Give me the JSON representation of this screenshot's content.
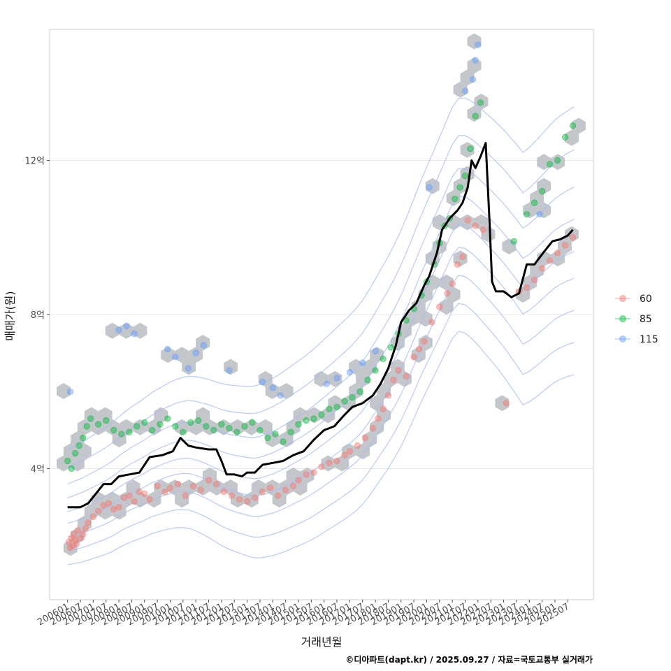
{
  "chart_data": {
    "type": "scatter",
    "xlabel": "거래년월",
    "ylabel": "매매가(원)",
    "caption": "©디아파트(dapt.kr) / 2025.09.27 / 자료=국토교통부 실거래가",
    "x_ticks": [
      "200601",
      "200607",
      "200701",
      "200707",
      "200801",
      "200807",
      "200901",
      "200907",
      "201001",
      "201007",
      "201101",
      "201107",
      "201201",
      "201207",
      "201301",
      "201307",
      "201401",
      "201407",
      "201501",
      "201507",
      "201601",
      "201607",
      "201701",
      "201707",
      "201801",
      "201807",
      "201901",
      "201907",
      "202001",
      "202007",
      "202101",
      "202107",
      "202201",
      "202207",
      "202301",
      "202307",
      "202401",
      "202407",
      "202501",
      "202507"
    ],
    "y_ticks": [
      {
        "value": 4,
        "label": "4억"
      },
      {
        "value": 8,
        "label": "8억"
      },
      {
        "value": 12,
        "label": "12억"
      }
    ],
    "xlim": [
      2005.3,
      2026.5
    ],
    "ylim": [
      0.6,
      15.4
    ],
    "legend": {
      "position": "right",
      "entries": [
        {
          "name": "60",
          "color": "#F8766D"
        },
        {
          "name": "85",
          "color": "#00BA38"
        },
        {
          "name": "115",
          "color": "#619CFF"
        }
      ]
    },
    "colors": {
      "panel_border": "#cccccc",
      "grid": "#e8e8e8",
      "hex": "#b8bcc2",
      "trend": "#000000",
      "contour": "#a8bdf0"
    },
    "trend_line": [
      [
        2006.0,
        3.0
      ],
      [
        2006.5,
        3.0
      ],
      [
        2006.8,
        3.1
      ],
      [
        2007.1,
        3.35
      ],
      [
        2007.4,
        3.6
      ],
      [
        2007.7,
        3.6
      ],
      [
        2008.0,
        3.8
      ],
      [
        2008.4,
        3.85
      ],
      [
        2008.8,
        3.9
      ],
      [
        2009.2,
        4.3
      ],
      [
        2009.7,
        4.35
      ],
      [
        2010.1,
        4.45
      ],
      [
        2010.4,
        4.8
      ],
      [
        2010.7,
        4.6
      ],
      [
        2011.0,
        4.55
      ],
      [
        2011.5,
        4.5
      ],
      [
        2011.8,
        4.5
      ],
      [
        2012.0,
        4.2
      ],
      [
        2012.2,
        3.85
      ],
      [
        2012.5,
        3.85
      ],
      [
        2012.8,
        3.8
      ],
      [
        2013.0,
        3.9
      ],
      [
        2013.3,
        3.9
      ],
      [
        2013.6,
        4.1
      ],
      [
        2014.0,
        4.15
      ],
      [
        2014.4,
        4.2
      ],
      [
        2014.8,
        4.35
      ],
      [
        2015.2,
        4.45
      ],
      [
        2015.6,
        4.75
      ],
      [
        2016.0,
        5.0
      ],
      [
        2016.4,
        5.1
      ],
      [
        2016.8,
        5.4
      ],
      [
        2017.1,
        5.6
      ],
      [
        2017.5,
        5.7
      ],
      [
        2017.9,
        5.9
      ],
      [
        2018.2,
        6.2
      ],
      [
        2018.5,
        6.6
      ],
      [
        2018.8,
        7.2
      ],
      [
        2019.0,
        7.8
      ],
      [
        2019.3,
        8.1
      ],
      [
        2019.6,
        8.3
      ],
      [
        2019.9,
        8.75
      ],
      [
        2020.1,
        9.0
      ],
      [
        2020.4,
        9.6
      ],
      [
        2020.6,
        10.2
      ],
      [
        2020.9,
        10.5
      ],
      [
        2021.2,
        10.7
      ],
      [
        2021.4,
        10.9
      ],
      [
        2021.6,
        11.3
      ],
      [
        2021.75,
        12.0
      ],
      [
        2021.9,
        11.8
      ],
      [
        2022.1,
        12.1
      ],
      [
        2022.3,
        12.45
      ],
      [
        2022.45,
        10.4
      ],
      [
        2022.55,
        8.85
      ],
      [
        2022.7,
        8.6
      ],
      [
        2023.0,
        8.6
      ],
      [
        2023.3,
        8.45
      ],
      [
        2023.6,
        8.55
      ],
      [
        2023.9,
        9.3
      ],
      [
        2024.2,
        9.3
      ],
      [
        2024.6,
        9.65
      ],
      [
        2024.9,
        9.9
      ],
      [
        2025.2,
        9.95
      ],
      [
        2025.5,
        10.05
      ],
      [
        2025.7,
        10.2
      ]
    ],
    "series": [
      {
        "name": "60",
        "points": [
          [
            2006.05,
            2.1
          ],
          [
            2006.1,
            1.95
          ],
          [
            2006.15,
            2.2
          ],
          [
            2006.2,
            2.0
          ],
          [
            2006.25,
            2.3
          ],
          [
            2006.3,
            2.15
          ],
          [
            2006.35,
            2.05
          ],
          [
            2006.4,
            2.4
          ],
          [
            2006.5,
            2.2
          ],
          [
            2006.6,
            2.3
          ],
          [
            2006.7,
            2.45
          ],
          [
            2006.8,
            2.6
          ],
          [
            2007.0,
            2.75
          ],
          [
            2007.2,
            2.9
          ],
          [
            2007.4,
            3.05
          ],
          [
            2007.6,
            3.1
          ],
          [
            2007.8,
            2.95
          ],
          [
            2008.0,
            3.0
          ],
          [
            2008.2,
            3.25
          ],
          [
            2008.4,
            3.3
          ],
          [
            2008.6,
            3.15
          ],
          [
            2008.8,
            3.4
          ],
          [
            2009.0,
            3.35
          ],
          [
            2009.2,
            3.2
          ],
          [
            2009.5,
            3.55
          ],
          [
            2009.8,
            3.4
          ],
          [
            2010.0,
            3.5
          ],
          [
            2010.3,
            3.6
          ],
          [
            2010.6,
            3.3
          ],
          [
            2010.9,
            3.55
          ],
          [
            2011.2,
            3.45
          ],
          [
            2011.5,
            3.7
          ],
          [
            2011.8,
            3.6
          ],
          [
            2012.1,
            3.4
          ],
          [
            2012.4,
            3.3
          ],
          [
            2012.7,
            3.2
          ],
          [
            2013.0,
            3.15
          ],
          [
            2013.3,
            3.25
          ],
          [
            2013.6,
            3.4
          ],
          [
            2013.9,
            3.5
          ],
          [
            2014.2,
            3.3
          ],
          [
            2014.5,
            3.45
          ],
          [
            2014.8,
            3.55
          ],
          [
            2015.0,
            3.7
          ],
          [
            2015.3,
            3.85
          ],
          [
            2015.6,
            3.9
          ],
          [
            2015.9,
            4.05
          ],
          [
            2016.2,
            4.15
          ],
          [
            2016.5,
            4.2
          ],
          [
            2016.8,
            4.35
          ],
          [
            2017.0,
            4.45
          ],
          [
            2017.3,
            4.6
          ],
          [
            2017.6,
            4.8
          ],
          [
            2017.9,
            5.05
          ],
          [
            2018.1,
            5.3
          ],
          [
            2018.3,
            5.55
          ],
          [
            2018.5,
            5.9
          ],
          [
            2018.7,
            6.3
          ],
          [
            2018.9,
            6.55
          ],
          [
            2019.2,
            6.4
          ],
          [
            2019.5,
            6.9
          ],
          [
            2019.7,
            7.1
          ],
          [
            2019.9,
            7.3
          ],
          [
            2020.2,
            7.8
          ],
          [
            2020.5,
            8.2
          ],
          [
            2020.8,
            8.55
          ],
          [
            2021.0,
            8.8
          ],
          [
            2021.2,
            9.3
          ],
          [
            2021.4,
            9.5
          ],
          [
            2021.6,
            10.45
          ],
          [
            2021.9,
            10.3
          ],
          [
            2022.2,
            10.2
          ],
          [
            2023.1,
            5.7
          ],
          [
            2023.6,
            8.6
          ],
          [
            2023.9,
            8.7
          ],
          [
            2024.2,
            8.9
          ],
          [
            2024.5,
            9.2
          ],
          [
            2024.8,
            9.4
          ],
          [
            2025.1,
            9.6
          ],
          [
            2025.4,
            9.8
          ],
          [
            2025.7,
            10.0
          ]
        ]
      },
      {
        "name": "85",
        "points": [
          [
            2006.0,
            4.2
          ],
          [
            2006.15,
            4.0
          ],
          [
            2006.3,
            4.4
          ],
          [
            2006.45,
            4.6
          ],
          [
            2006.6,
            4.8
          ],
          [
            2006.75,
            5.1
          ],
          [
            2006.9,
            5.3
          ],
          [
            2007.2,
            5.15
          ],
          [
            2007.5,
            5.25
          ],
          [
            2007.8,
            5.0
          ],
          [
            2008.1,
            4.9
          ],
          [
            2008.4,
            4.95
          ],
          [
            2008.7,
            5.1
          ],
          [
            2009.0,
            5.2
          ],
          [
            2009.3,
            5.0
          ],
          [
            2009.6,
            5.15
          ],
          [
            2009.9,
            5.3
          ],
          [
            2010.2,
            5.1
          ],
          [
            2010.5,
            4.95
          ],
          [
            2010.8,
            5.2
          ],
          [
            2011.1,
            5.25
          ],
          [
            2011.4,
            5.1
          ],
          [
            2011.7,
            5.0
          ],
          [
            2012.0,
            5.15
          ],
          [
            2012.3,
            5.05
          ],
          [
            2012.6,
            4.95
          ],
          [
            2012.9,
            5.1
          ],
          [
            2013.2,
            5.2
          ],
          [
            2013.5,
            5.0
          ],
          [
            2013.8,
            4.8
          ],
          [
            2014.1,
            4.9
          ],
          [
            2014.4,
            4.7
          ],
          [
            2014.7,
            4.95
          ],
          [
            2015.0,
            5.15
          ],
          [
            2015.3,
            5.25
          ],
          [
            2015.6,
            5.3
          ],
          [
            2015.9,
            5.4
          ],
          [
            2016.2,
            5.55
          ],
          [
            2016.5,
            5.6
          ],
          [
            2016.8,
            5.75
          ],
          [
            2017.1,
            5.85
          ],
          [
            2017.4,
            6.0
          ],
          [
            2017.7,
            6.3
          ],
          [
            2018.0,
            6.55
          ],
          [
            2018.3,
            6.85
          ],
          [
            2018.6,
            7.15
          ],
          [
            2018.9,
            7.5
          ],
          [
            2019.2,
            7.85
          ],
          [
            2019.5,
            8.15
          ],
          [
            2019.8,
            8.5
          ],
          [
            2020.0,
            8.85
          ],
          [
            2020.3,
            9.3
          ],
          [
            2020.5,
            9.85
          ],
          [
            2020.7,
            10.3
          ],
          [
            2020.9,
            10.5
          ],
          [
            2021.1,
            11.0
          ],
          [
            2021.3,
            11.3
          ],
          [
            2021.5,
            11.6
          ],
          [
            2021.7,
            12.3
          ],
          [
            2021.9,
            13.15
          ],
          [
            2022.1,
            13.5
          ],
          [
            2023.4,
            9.9
          ],
          [
            2023.9,
            10.6
          ],
          [
            2024.2,
            10.9
          ],
          [
            2024.5,
            11.2
          ],
          [
            2024.8,
            11.9
          ],
          [
            2025.1,
            12.0
          ],
          [
            2025.4,
            12.6
          ],
          [
            2025.7,
            12.9
          ]
        ]
      },
      {
        "name": "115",
        "points": [
          [
            2006.1,
            6.0
          ],
          [
            2008.0,
            7.6
          ],
          [
            2008.3,
            7.7
          ],
          [
            2008.6,
            7.5
          ],
          [
            2009.9,
            7.1
          ],
          [
            2010.2,
            6.9
          ],
          [
            2010.7,
            6.6
          ],
          [
            2011.0,
            7.0
          ],
          [
            2011.3,
            7.2
          ],
          [
            2012.3,
            6.55
          ],
          [
            2013.6,
            6.25
          ],
          [
            2014.0,
            6.1
          ],
          [
            2014.3,
            5.9
          ],
          [
            2016.1,
            6.2
          ],
          [
            2016.5,
            6.35
          ],
          [
            2017.0,
            6.5
          ],
          [
            2017.5,
            6.75
          ],
          [
            2018.0,
            7.05
          ],
          [
            2020.1,
            11.3
          ],
          [
            2021.5,
            13.8
          ],
          [
            2021.8,
            14.1
          ],
          [
            2021.9,
            14.6
          ],
          [
            2022.0,
            15.0
          ],
          [
            2024.4,
            10.6
          ]
        ]
      }
    ]
  }
}
